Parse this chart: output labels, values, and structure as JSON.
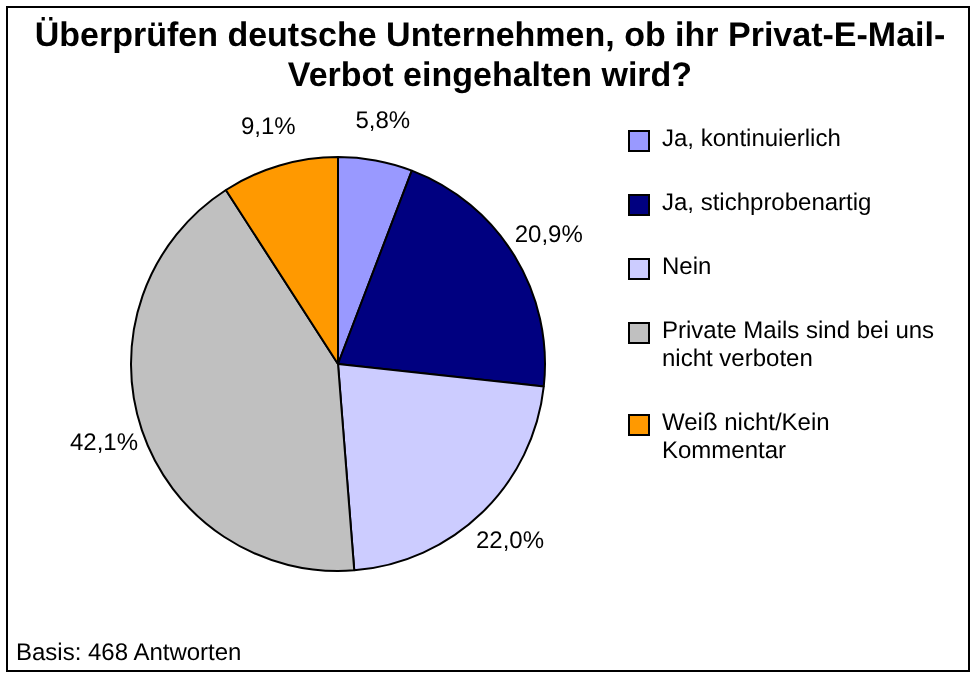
{
  "chart_data": {
    "type": "pie",
    "title": "Überprüfen deutsche Unternehmen, ob ihr Privat-E-Mail-Verbot eingehalten wird?",
    "categories": [
      "Ja, kontinuierlich",
      "Ja, stichprobenartig",
      "Nein",
      "Private Mails sind bei uns nicht verboten",
      "Weiß nicht/Kein Kommentar"
    ],
    "values": [
      5.8,
      20.9,
      22.0,
      42.1,
      9.1
    ],
    "value_labels": [
      "5,8%",
      "20,9%",
      "22,0%",
      "42,1%",
      "9,1%"
    ],
    "colors": [
      "#9999ff",
      "#000080",
      "#ccccff",
      "#c0c0c0",
      "#ff9900"
    ],
    "legend": "right",
    "annotations": [
      "Basis: 468 Antworten"
    ]
  }
}
